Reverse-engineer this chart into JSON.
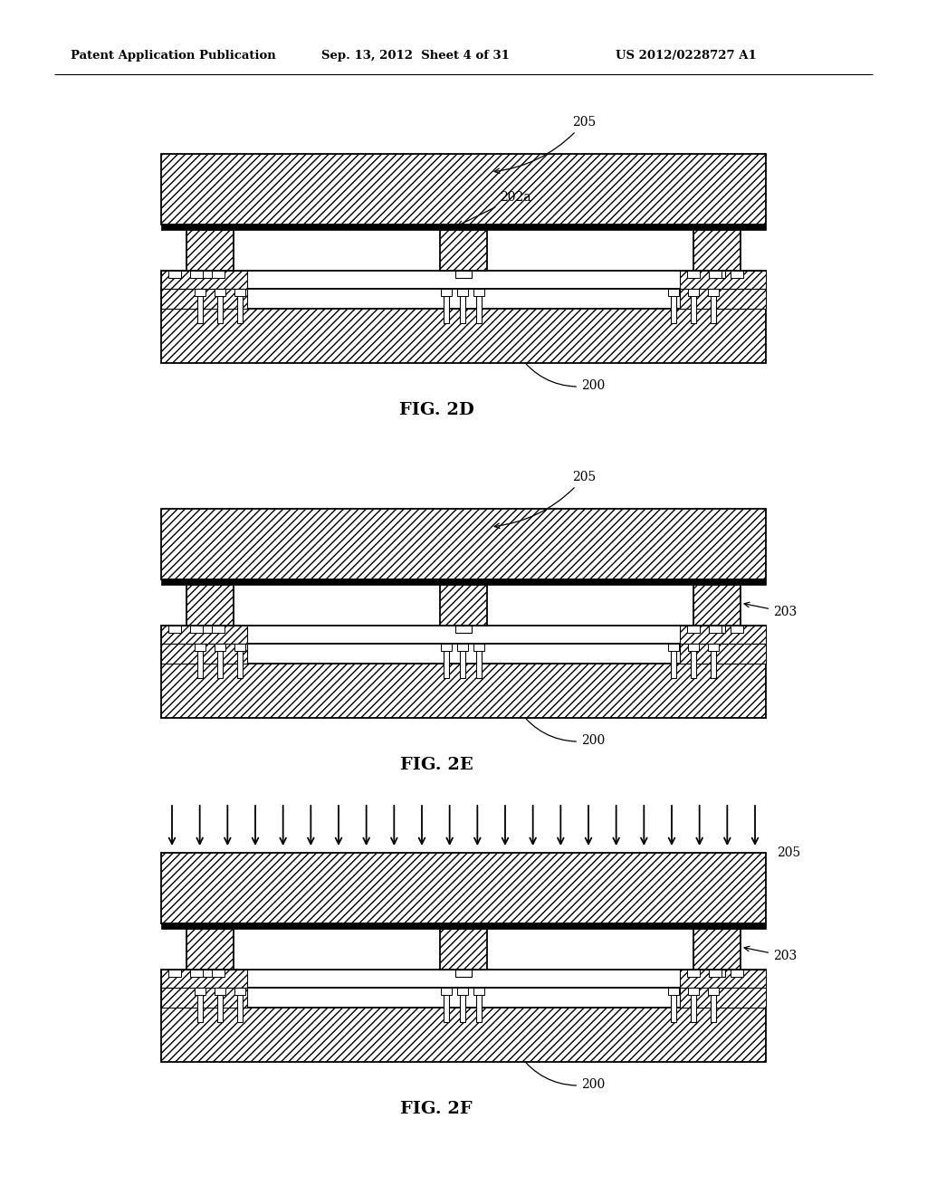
{
  "title_left": "Patent Application Publication",
  "title_center": "Sep. 13, 2012  Sheet 4 of 31",
  "title_right": "US 2012/0228727 A1",
  "bg_color": "#ffffff",
  "line_color": "#000000",
  "fig2d_label": "FIG. 2D",
  "fig2e_label": "FIG. 2E",
  "fig2f_label": "FIG. 2F",
  "ref_205": "205",
  "ref_202a": "202a",
  "ref_203": "203",
  "ref_200": "200",
  "n_arrows_2f": 22
}
